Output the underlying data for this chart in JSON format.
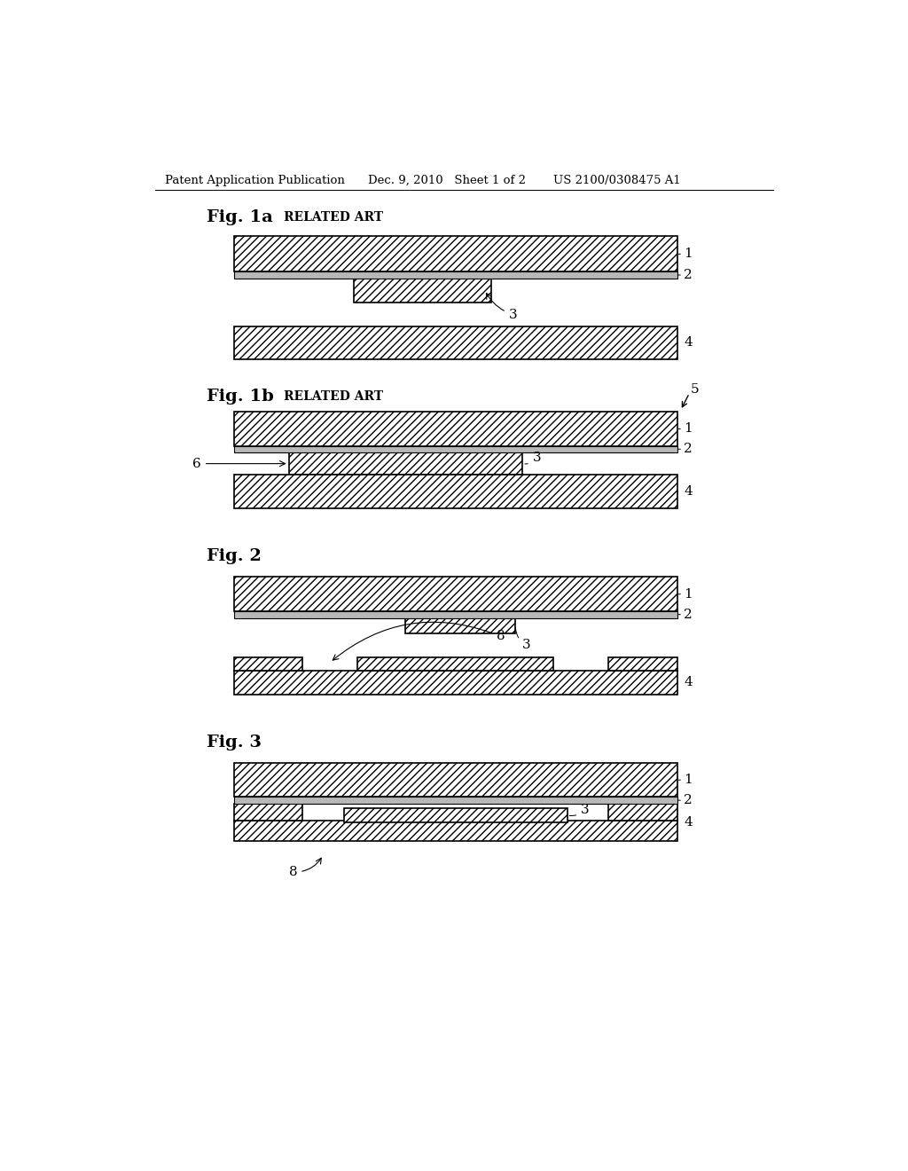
{
  "header_left": "Patent Application Publication",
  "header_mid": "Dec. 9, 2010   Sheet 1 of 2",
  "header_right": "US 2100/0308475 A1",
  "background_color": "#ffffff"
}
